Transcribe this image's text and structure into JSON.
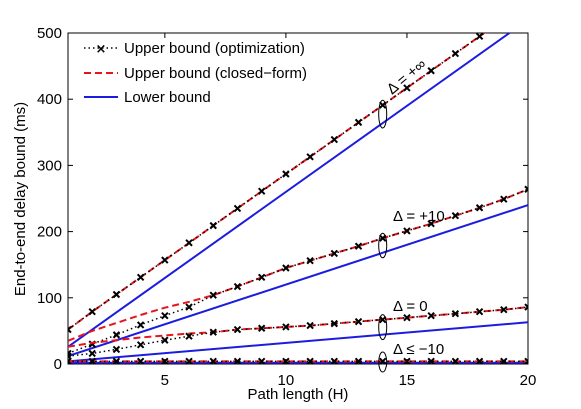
{
  "chart_data": {
    "type": "line",
    "xlabel": "Path length (H)",
    "ylabel": "End-to-end delay bound (ms)",
    "xlim": [
      1,
      20
    ],
    "ylim": [
      0,
      500
    ],
    "xticks": [
      5,
      10,
      15,
      20
    ],
    "yticks": [
      0,
      100,
      200,
      300,
      400,
      500
    ],
    "x_tick_labels": [
      "5",
      "10",
      "15",
      "20"
    ],
    "y_tick_labels": [
      "0",
      "100",
      "200",
      "300",
      "400",
      "500"
    ],
    "grid": false,
    "legend_position": "top-left",
    "legend": [
      {
        "label": "Upper bound (optimization)",
        "style": "dotted-x",
        "color": "#000000"
      },
      {
        "label": "Upper bound (closed−form)",
        "style": "dashed",
        "color": "#e8141c"
      },
      {
        "label": "Lower bound",
        "style": "solid",
        "color": "#1c1ce0"
      }
    ],
    "groups": [
      {
        "annotation": "Δ = +∞",
        "annotation_at_x": 14,
        "x": [
          1,
          2,
          3,
          4,
          5,
          6,
          7,
          8,
          9,
          10,
          11,
          12,
          13,
          14,
          15,
          16,
          17,
          18,
          19,
          20
        ],
        "upper_optimization": [
          52,
          79,
          105,
          131,
          157,
          183,
          209,
          235,
          261,
          287,
          313,
          339,
          365,
          391,
          417,
          443,
          469,
          495,
          521,
          547
        ],
        "upper_closed_form": [
          52,
          79,
          105,
          131,
          157,
          183,
          209,
          235,
          261,
          287,
          313,
          339,
          365,
          391,
          417,
          443,
          469,
          495,
          521,
          547
        ],
        "lower_bound_x": [
          1,
          20
        ],
        "lower_bound": [
          26,
          520
        ]
      },
      {
        "annotation": "Δ = +10",
        "annotation_at_x": 14,
        "x": [
          1,
          2,
          3,
          4,
          5,
          6,
          7,
          8,
          9,
          10,
          11,
          12,
          13,
          14,
          15,
          16,
          17,
          18,
          19,
          20
        ],
        "upper_optimization": [
          16,
          30,
          44,
          59,
          73,
          86,
          104,
          117,
          131,
          145,
          156,
          167,
          178,
          190,
          201,
          212,
          224,
          236,
          249,
          264
        ],
        "upper_closed_form": [
          35,
          50,
          62,
          74,
          85,
          94,
          104,
          117,
          131,
          145,
          156,
          167,
          178,
          190,
          201,
          212,
          224,
          236,
          249,
          264
        ],
        "lower_bound_x": [
          1,
          20
        ],
        "lower_bound": [
          12,
          240
        ]
      },
      {
        "annotation": "Δ = 0",
        "annotation_at_x": 14,
        "x": [
          1,
          2,
          3,
          4,
          5,
          6,
          7,
          8,
          9,
          10,
          11,
          12,
          13,
          14,
          15,
          16,
          17,
          18,
          19,
          20
        ],
        "upper_optimization": [
          12,
          16,
          22,
          29,
          36,
          42,
          48,
          52,
          54,
          56,
          58,
          61,
          64,
          67,
          70,
          73,
          76,
          79,
          82,
          86
        ],
        "upper_closed_form": [
          26,
          32,
          36,
          40,
          43,
          46,
          48,
          52,
          54,
          56,
          58,
          61,
          64,
          67,
          70,
          73,
          76,
          79,
          82,
          86
        ],
        "lower_bound_x": [
          1,
          20
        ],
        "lower_bound": [
          4,
          63
        ]
      },
      {
        "annotation": "Δ ≤ −10",
        "annotation_at_x": 14,
        "x": [
          1,
          2,
          3,
          4,
          5,
          6,
          7,
          8,
          9,
          10,
          11,
          12,
          13,
          14,
          15,
          16,
          17,
          18,
          19,
          20
        ],
        "upper_optimization": [
          4,
          4,
          4,
          4,
          4,
          4,
          4,
          4,
          4,
          4,
          4,
          4,
          4,
          4,
          4,
          4,
          4,
          4,
          4,
          4
        ],
        "upper_closed_form": [
          4,
          4,
          4,
          4,
          4,
          4,
          4,
          4,
          4,
          4,
          4,
          4,
          4,
          4,
          4,
          4,
          4,
          4,
          4,
          4
        ],
        "lower_bound_x": [
          1,
          20
        ],
        "lower_bound": [
          2,
          2
        ]
      }
    ]
  }
}
